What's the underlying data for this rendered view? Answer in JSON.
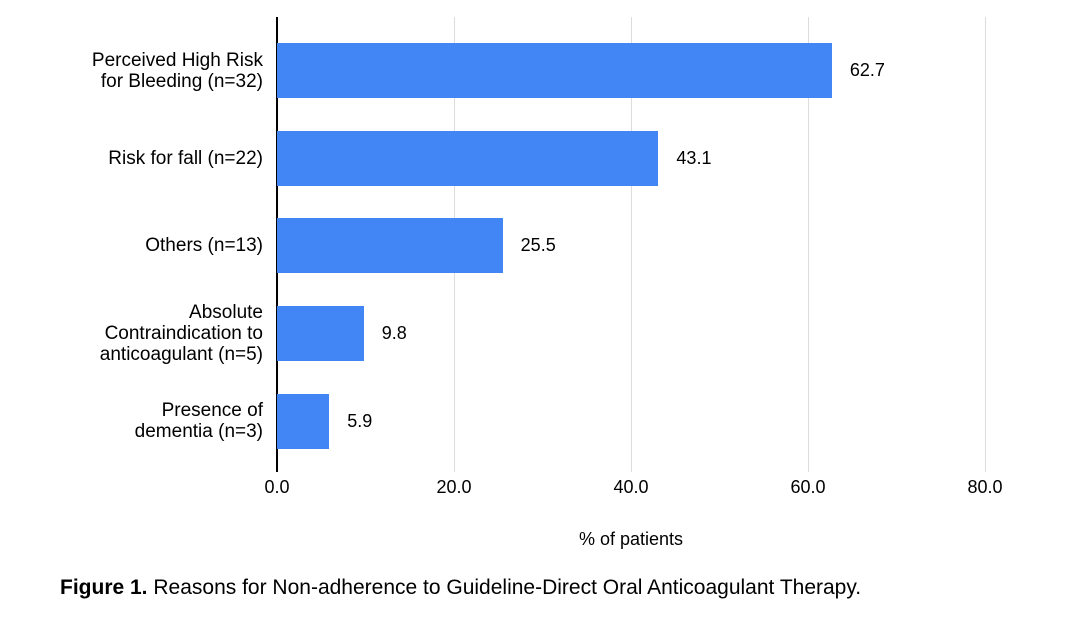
{
  "figure": {
    "caption": {
      "prefix": "Figure 1.",
      "text": " Reasons for Non-adherence to Guideline-Direct Oral Anticoagulant Therapy."
    }
  },
  "chart_data": {
    "type": "bar",
    "orientation": "horizontal",
    "title": "",
    "xlabel": "% of patients",
    "ylabel": "",
    "xlim": [
      0,
      80
    ],
    "x_tick_values": [
      0,
      20,
      40,
      60,
      80
    ],
    "x_tick_labels": [
      "0.0",
      "20.0",
      "40.0",
      "60.0",
      "80.0"
    ],
    "grid": true,
    "legend": "none",
    "categories": [
      "Perceived High Risk for Bleeding (n=32)",
      "Risk for fall (n=22)",
      "Others (n=13)",
      "Absolute Contraindication to anticoagulant (n=5)",
      "Presence of dementia (n=3)"
    ],
    "category_lines": [
      [
        "Perceived High Risk",
        "for Bleeding (n=32)"
      ],
      [
        "Risk for fall (n=22)"
      ],
      [
        "Others (n=13)"
      ],
      [
        "Absolute",
        "Contraindication to",
        "anticoagulant (n=5)"
      ],
      [
        "Presence of",
        "dementia (n=3)"
      ]
    ],
    "values": [
      62.7,
      43.1,
      25.5,
      9.8,
      5.9
    ],
    "value_labels": [
      "62.7",
      "43.1",
      "25.5",
      "9.8",
      "5.9"
    ]
  },
  "colors": {
    "bar": "#4285f4",
    "gridline": "#dcdcdc",
    "axis": "#000000",
    "text": "#000000"
  }
}
